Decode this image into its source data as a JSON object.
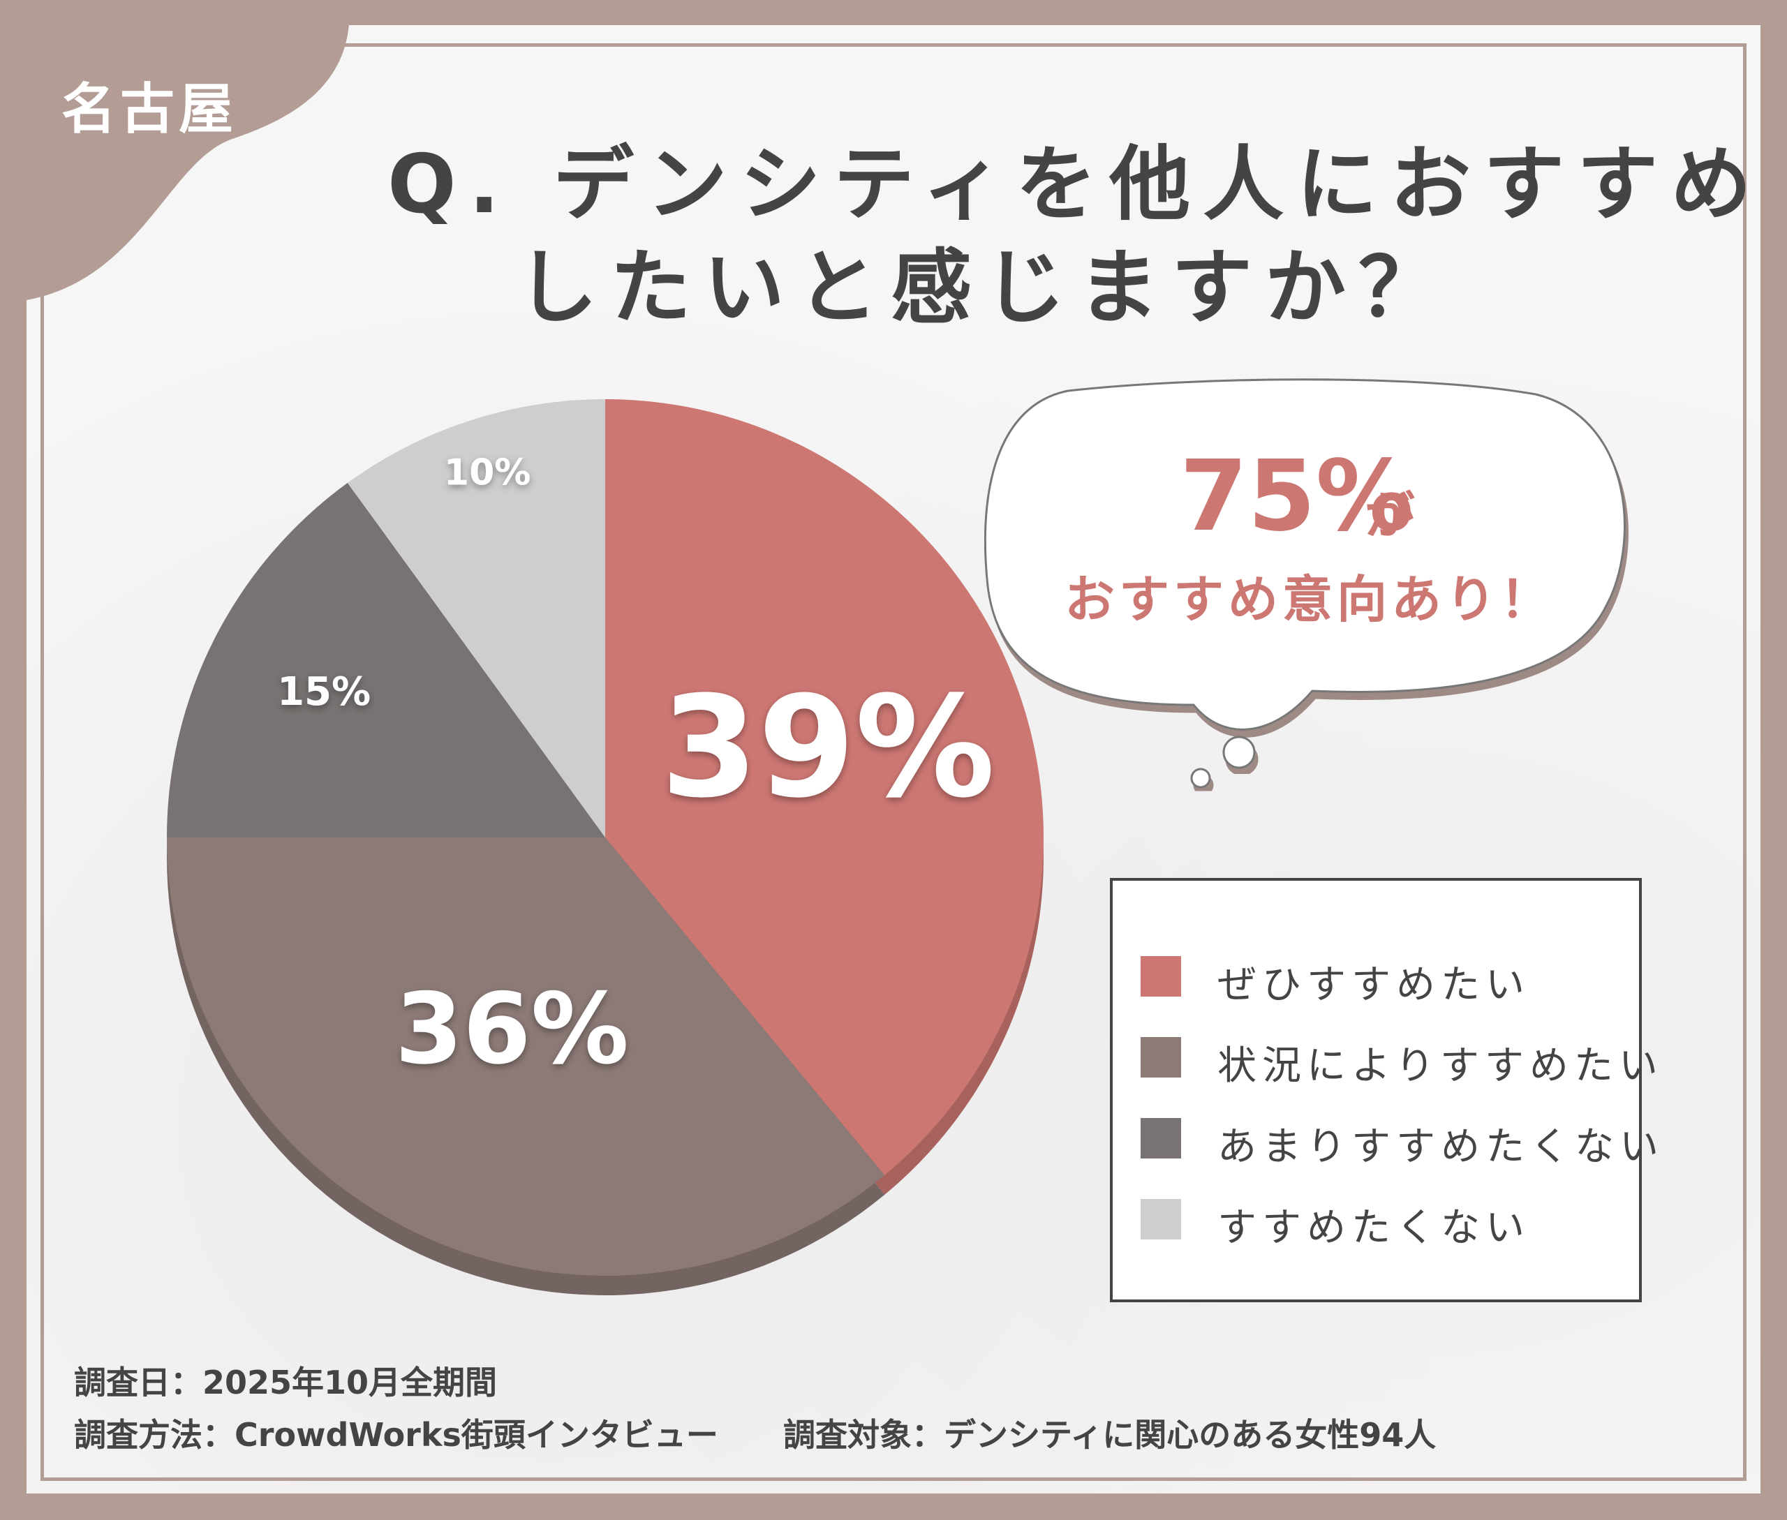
{
  "region_label": "名古屋",
  "title": {
    "line1": "Q. デンシティを他人におすすめ",
    "line2": "したいと感じますか？"
  },
  "callout": {
    "value": "75%",
    "particle": "が",
    "text": "おすすめ意向あり！"
  },
  "colors": {
    "frame": "#b39c94",
    "accent": "#cd7773"
  },
  "chart_data": {
    "type": "pie",
    "categories": [
      "ぜひすすめたい",
      "状況によりすすめたい",
      "あまりすすめたくない",
      "すすめたくない"
    ],
    "values": [
      39,
      36,
      15,
      10
    ],
    "value_labels": [
      "39%",
      "36%",
      "15%",
      "10%"
    ],
    "colors": [
      "#cd7773",
      "#8c7a77",
      "#787372",
      "#cfcecf"
    ],
    "legend": "right"
  },
  "footer": {
    "date": "調査日：2025年10月全期間",
    "method": "調査方法：CrowdWorks街頭インタビュー",
    "target": "調査対象：デンシティに関心のある女性94人"
  }
}
